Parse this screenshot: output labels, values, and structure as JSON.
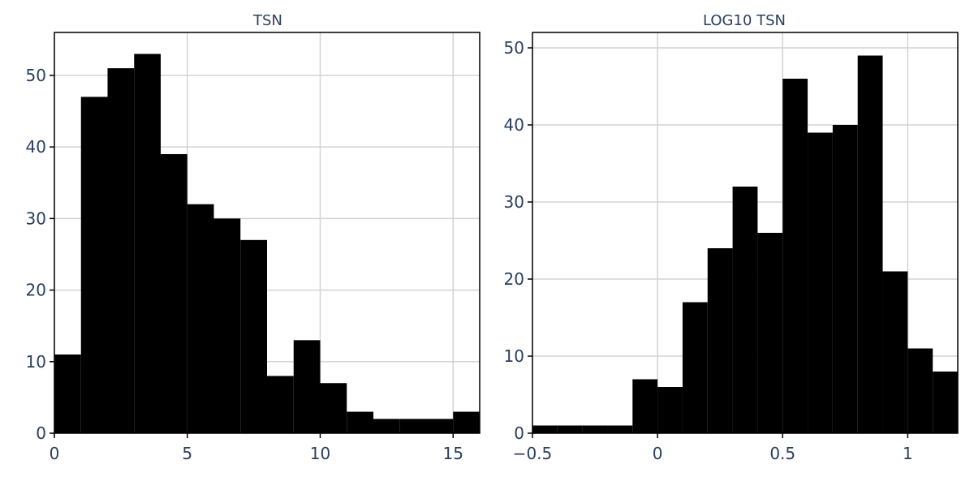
{
  "chart_data": [
    {
      "type": "bar",
      "title": "TSN",
      "xlabel": "",
      "ylabel": "",
      "bin_width": 1,
      "bins": [
        {
          "x0": 0,
          "x1": 1,
          "count": 11
        },
        {
          "x0": 1,
          "x1": 2,
          "count": 47
        },
        {
          "x0": 2,
          "x1": 3,
          "count": 51
        },
        {
          "x0": 3,
          "x1": 4,
          "count": 53
        },
        {
          "x0": 4,
          "x1": 5,
          "count": 39
        },
        {
          "x0": 5,
          "x1": 6,
          "count": 32
        },
        {
          "x0": 6,
          "x1": 7,
          "count": 30
        },
        {
          "x0": 7,
          "x1": 8,
          "count": 27
        },
        {
          "x0": 8,
          "x1": 9,
          "count": 8
        },
        {
          "x0": 9,
          "x1": 10,
          "count": 13
        },
        {
          "x0": 10,
          "x1": 11,
          "count": 7
        },
        {
          "x0": 11,
          "x1": 12,
          "count": 3
        },
        {
          "x0": 12,
          "x1": 13,
          "count": 2
        },
        {
          "x0": 13,
          "x1": 14,
          "count": 2
        },
        {
          "x0": 14,
          "x1": 15,
          "count": 2
        },
        {
          "x0": 15,
          "x1": 16,
          "count": 3
        }
      ],
      "xlim": [
        0,
        16
      ],
      "ylim": [
        0,
        56
      ],
      "xticks": [
        0,
        5,
        10,
        15
      ],
      "xtick_labels": [
        "0",
        "5",
        "10",
        "15"
      ],
      "yticks": [
        0,
        10,
        20,
        30,
        40,
        50
      ],
      "ytick_labels": [
        "0",
        "10",
        "20",
        "30",
        "40",
        "50"
      ],
      "grid": true,
      "bar_color": "#000000"
    },
    {
      "type": "bar",
      "title": "LOG10 TSN",
      "xlabel": "",
      "ylabel": "",
      "bin_width": 0.1,
      "bins": [
        {
          "x0": -0.5,
          "x1": -0.4,
          "count": 1
        },
        {
          "x0": -0.4,
          "x1": -0.3,
          "count": 1
        },
        {
          "x0": -0.3,
          "x1": -0.2,
          "count": 1
        },
        {
          "x0": -0.2,
          "x1": -0.1,
          "count": 1
        },
        {
          "x0": -0.1,
          "x1": 0.0,
          "count": 7
        },
        {
          "x0": 0.0,
          "x1": 0.1,
          "count": 6
        },
        {
          "x0": 0.1,
          "x1": 0.2,
          "count": 17
        },
        {
          "x0": 0.2,
          "x1": 0.3,
          "count": 24
        },
        {
          "x0": 0.3,
          "x1": 0.4,
          "count": 32
        },
        {
          "x0": 0.4,
          "x1": 0.5,
          "count": 26
        },
        {
          "x0": 0.5,
          "x1": 0.6,
          "count": 46
        },
        {
          "x0": 0.6,
          "x1": 0.7,
          "count": 39
        },
        {
          "x0": 0.7,
          "x1": 0.8,
          "count": 40
        },
        {
          "x0": 0.8,
          "x1": 0.9,
          "count": 49
        },
        {
          "x0": 0.9,
          "x1": 1.0,
          "count": 21
        },
        {
          "x0": 1.0,
          "x1": 1.1,
          "count": 11
        },
        {
          "x0": 1.1,
          "x1": 1.2,
          "count": 8
        }
      ],
      "xlim": [
        -0.5,
        1.2
      ],
      "ylim": [
        0,
        52
      ],
      "xticks": [
        -0.5,
        0,
        0.5,
        1
      ],
      "xtick_labels": [
        "−0.5",
        "0",
        "0.5",
        "1"
      ],
      "yticks": [
        0,
        10,
        20,
        30,
        40,
        50
      ],
      "ytick_labels": [
        "0",
        "10",
        "20",
        "30",
        "40",
        "50"
      ],
      "grid": true,
      "bar_color": "#000000"
    }
  ]
}
